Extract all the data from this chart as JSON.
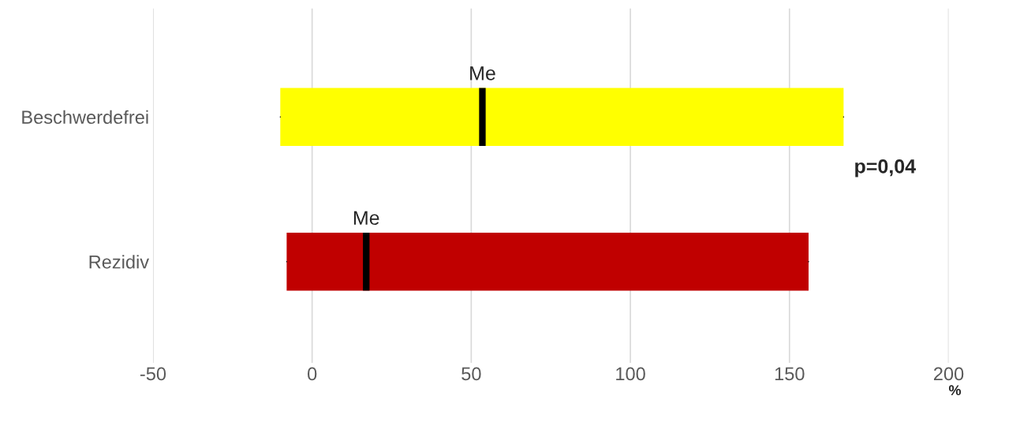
{
  "chart_data": {
    "type": "box",
    "orientation": "horizontal",
    "categories": [
      "Beschwerdefrei",
      "Rezidiv"
    ],
    "colors": [
      "#ffff00",
      "#c00000"
    ],
    "boxes": [
      {
        "low": -10,
        "q1": -10,
        "median": 53.5,
        "q3": 167,
        "high": 167
      },
      {
        "low": -8,
        "q1": -8,
        "median": 17,
        "q3": 156,
        "high": 156
      }
    ],
    "xlabel": "%",
    "xlim": [
      -50,
      200
    ],
    "xticks": [
      -50,
      0,
      50,
      100,
      150,
      200
    ],
    "grid": "x",
    "annotations": [
      {
        "text": "Me",
        "x": 53.5,
        "y": "Beschwerdefrei"
      },
      {
        "text": "Me",
        "x": 17,
        "y": "Rezidiv"
      },
      "p=0,04"
    ]
  }
}
